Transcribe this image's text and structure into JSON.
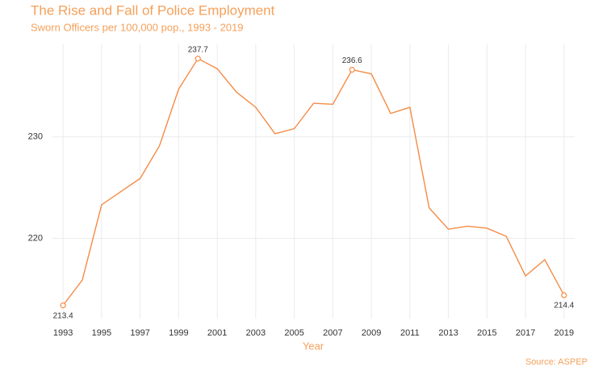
{
  "chart_data": {
    "type": "line",
    "title": "The Rise and Fall of Police Employment",
    "subtitle": "Sworn Officers per 100,000 pop., 1993 - 2019",
    "x_label": "Year",
    "source": "Source: ASPEP",
    "x": [
      1993,
      1994,
      1995,
      1996,
      1997,
      1998,
      1999,
      2000,
      2001,
      2002,
      2003,
      2004,
      2005,
      2006,
      2007,
      2008,
      2009,
      2010,
      2011,
      2012,
      2013,
      2014,
      2015,
      2016,
      2017,
      2018,
      2019
    ],
    "series": [
      {
        "name": "Sworn Officers per 100,000 pop.",
        "color": "#f58b45",
        "values": [
          213.4,
          215.9,
          223.3,
          224.6,
          225.9,
          229.1,
          234.7,
          237.7,
          236.7,
          234.4,
          232.9,
          230.3,
          230.8,
          233.3,
          233.2,
          236.6,
          236.2,
          232.3,
          232.9,
          223.0,
          220.9,
          221.2,
          221.0,
          220.2,
          216.3,
          217.9,
          214.4
        ]
      }
    ],
    "highlight_points": [
      0,
      7,
      15,
      26
    ],
    "xlim": [
      1992.45,
      2019.55
    ],
    "ylim": [
      212.1,
      239.1
    ],
    "xticks": [
      1993,
      1995,
      1997,
      1999,
      2001,
      2003,
      2005,
      2007,
      2009,
      2011,
      2013,
      2015,
      2017,
      2019
    ],
    "yticks": [
      220,
      230
    ],
    "grid": true
  }
}
